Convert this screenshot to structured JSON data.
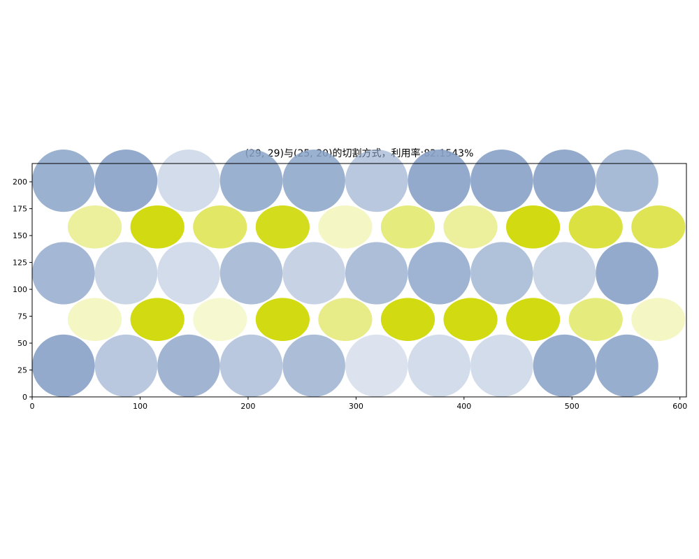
{
  "chart_data": {
    "type": "scatter",
    "title": "(29, 29)与(25, 20)的切割方式，利用率:82.1543%",
    "xlabel": "",
    "ylabel": "",
    "xlim": [
      0,
      606
    ],
    "ylim": [
      0,
      217
    ],
    "x_ticks": [
      0,
      100,
      200,
      300,
      400,
      500,
      600
    ],
    "y_ticks": [
      0,
      25,
      50,
      75,
      100,
      125,
      150,
      175,
      200
    ],
    "grid": false,
    "legend": "none",
    "series": [
      {
        "shape": "circle",
        "size": [
          29,
          29
        ],
        "base_color": "#8aa3c8",
        "points": [
          {
            "x": 29,
            "y": 29,
            "o": 0.92
          },
          {
            "x": 87,
            "y": 29,
            "o": 0.6
          },
          {
            "x": 145,
            "y": 29,
            "o": 0.8
          },
          {
            "x": 203,
            "y": 29,
            "o": 0.6
          },
          {
            "x": 261,
            "y": 29,
            "o": 0.72
          },
          {
            "x": 319,
            "y": 29,
            "o": 0.3
          },
          {
            "x": 377,
            "y": 29,
            "o": 0.38
          },
          {
            "x": 435,
            "y": 29,
            "o": 0.38
          },
          {
            "x": 493,
            "y": 29,
            "o": 0.88
          },
          {
            "x": 551,
            "y": 29,
            "o": 0.88
          },
          {
            "x": 29,
            "y": 115,
            "o": 0.78
          },
          {
            "x": 87,
            "y": 115,
            "o": 0.45
          },
          {
            "x": 145,
            "y": 115,
            "o": 0.38
          },
          {
            "x": 203,
            "y": 115,
            "o": 0.7
          },
          {
            "x": 261,
            "y": 115,
            "o": 0.48
          },
          {
            "x": 319,
            "y": 115,
            "o": 0.7
          },
          {
            "x": 377,
            "y": 115,
            "o": 0.82
          },
          {
            "x": 435,
            "y": 115,
            "o": 0.68
          },
          {
            "x": 493,
            "y": 115,
            "o": 0.45
          },
          {
            "x": 551,
            "y": 115,
            "o": 0.92
          },
          {
            "x": 29,
            "y": 201,
            "o": 0.85
          },
          {
            "x": 87,
            "y": 201,
            "o": 0.92
          },
          {
            "x": 145,
            "y": 201,
            "o": 0.38
          },
          {
            "x": 203,
            "y": 201,
            "o": 0.85
          },
          {
            "x": 261,
            "y": 201,
            "o": 0.85
          },
          {
            "x": 319,
            "y": 201,
            "o": 0.6
          },
          {
            "x": 377,
            "y": 201,
            "o": 0.92
          },
          {
            "x": 435,
            "y": 201,
            "o": 0.92
          },
          {
            "x": 493,
            "y": 201,
            "o": 0.92
          },
          {
            "x": 551,
            "y": 201,
            "o": 0.75
          }
        ]
      },
      {
        "shape": "ellipse",
        "size": [
          25,
          20
        ],
        "base_color": "#d2da12",
        "points": [
          {
            "x": 58,
            "y": 72,
            "o": 0.25
          },
          {
            "x": 116,
            "y": 72,
            "o": 1.0
          },
          {
            "x": 174,
            "y": 72,
            "o": 0.2
          },
          {
            "x": 232,
            "y": 72,
            "o": 1.0
          },
          {
            "x": 290,
            "y": 72,
            "o": 0.5
          },
          {
            "x": 348,
            "y": 72,
            "o": 1.0
          },
          {
            "x": 406,
            "y": 72,
            "o": 1.0
          },
          {
            "x": 464,
            "y": 72,
            "o": 1.0
          },
          {
            "x": 522,
            "y": 72,
            "o": 0.55
          },
          {
            "x": 580,
            "y": 72,
            "o": 0.25
          },
          {
            "x": 58,
            "y": 158,
            "o": 0.42
          },
          {
            "x": 116,
            "y": 158,
            "o": 1.0
          },
          {
            "x": 174,
            "y": 158,
            "o": 0.65
          },
          {
            "x": 232,
            "y": 158,
            "o": 0.95
          },
          {
            "x": 290,
            "y": 158,
            "o": 0.25
          },
          {
            "x": 348,
            "y": 158,
            "o": 0.55
          },
          {
            "x": 406,
            "y": 158,
            "o": 0.42
          },
          {
            "x": 464,
            "y": 158,
            "o": 1.0
          },
          {
            "x": 522,
            "y": 158,
            "o": 0.8
          },
          {
            "x": 580,
            "y": 158,
            "o": 0.72
          }
        ]
      }
    ]
  }
}
